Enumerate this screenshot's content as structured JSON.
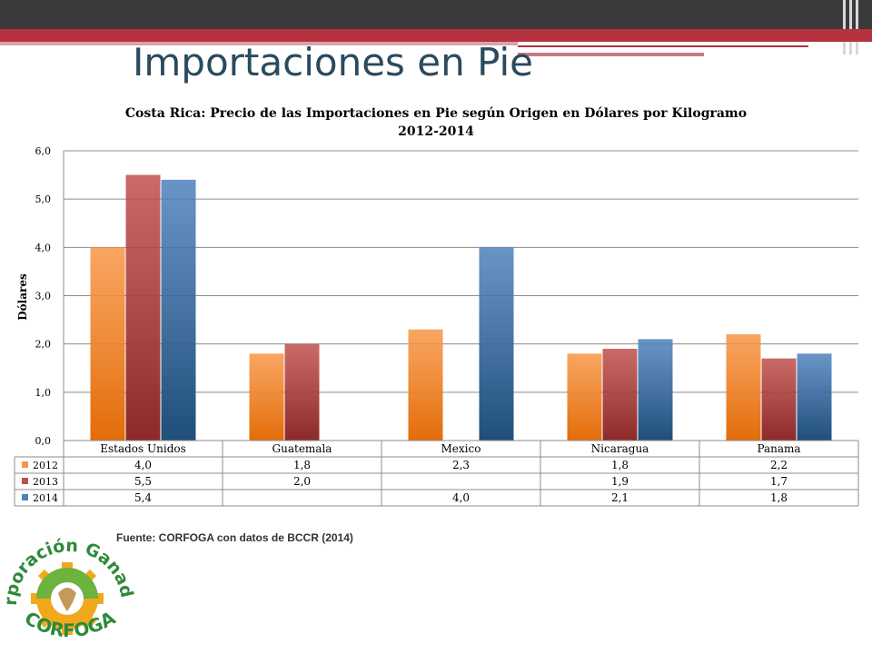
{
  "slide": {
    "title": "Importaciones en Pie",
    "source": "Fuente: CORFOGA  con datos de BCCR  (2014)"
  },
  "logo": {
    "top_text": "Corporación Ganadera",
    "bottom_text": "CORFOGA"
  },
  "colors": {
    "series_2012": "#f79646",
    "series_2013": "#c0504d",
    "series_2014": "#4f81bd",
    "title_color": "#2a4a5e",
    "header_bar": "#3a3a3a",
    "accent_band": "#b5323e"
  },
  "chart_data": {
    "type": "bar",
    "title": "Costa Rica: Precio de las Importaciones en Pie según Origen en Dólares por Kilogramo",
    "subtitle": "2012-2014",
    "xlabel": "",
    "ylabel": "Dólares",
    "ylim": [
      0,
      6
    ],
    "yticks": [
      "0,0",
      "1,0",
      "2,0",
      "3,0",
      "4,0",
      "5,0",
      "6,0"
    ],
    "grid": true,
    "legend": "data-table",
    "categories": [
      "Estados Unidos",
      "Guatemala",
      "Mexico",
      "Nicaragua",
      "Panama"
    ],
    "series": [
      {
        "name": "2012",
        "values": [
          4.0,
          1.8,
          2.3,
          1.8,
          2.2
        ],
        "labels": [
          "4,0",
          "1,8",
          "2,3",
          "1,8",
          "2,2"
        ]
      },
      {
        "name": "2013",
        "values": [
          5.5,
          2.0,
          null,
          1.9,
          1.7
        ],
        "labels": [
          "5,5",
          "2,0",
          "",
          "1,9",
          "1,7"
        ]
      },
      {
        "name": "2014",
        "values": [
          5.4,
          null,
          4.0,
          2.1,
          1.8
        ],
        "labels": [
          "5,4",
          "",
          "4,0",
          "2,1",
          "1,8"
        ]
      }
    ]
  }
}
